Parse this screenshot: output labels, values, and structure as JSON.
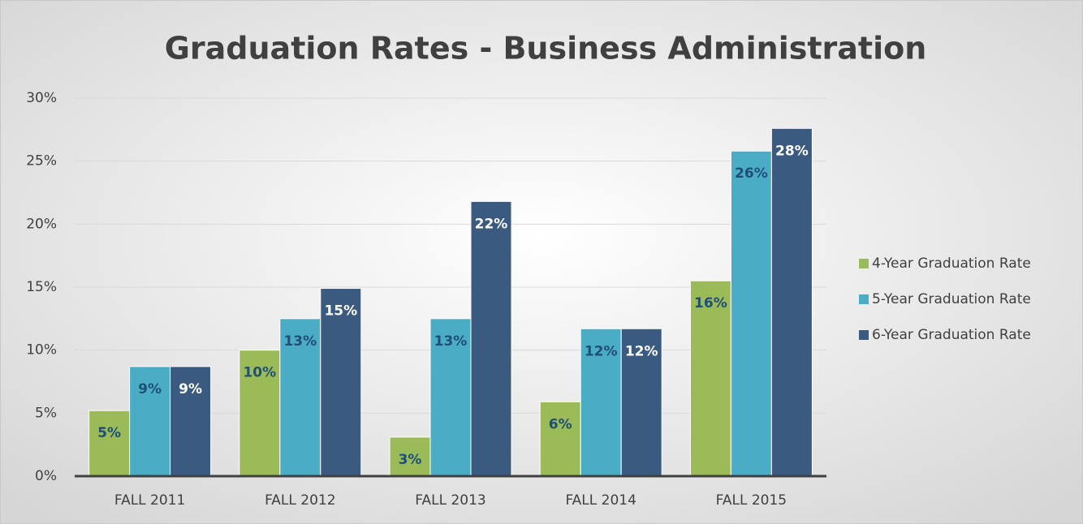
{
  "chart_data": {
    "type": "bar",
    "title": "Graduation Rates - Business Administration",
    "categories": [
      "FALL 2011",
      "FALL 2012",
      "FALL 2013",
      "FALL 2014",
      "FALL 2015"
    ],
    "series": [
      {
        "name": "4-Year Graduation Rate",
        "color": "#9bbb59",
        "label_color": "#1f4e79",
        "values": [
          5.2,
          10.0,
          3.1,
          5.9,
          15.5
        ],
        "value_labels": [
          "5%",
          "10%",
          "3%",
          "6%",
          "16%"
        ]
      },
      {
        "name": "5-Year Graduation Rate",
        "color": "#4bacc6",
        "label_color": "#1f4e79",
        "values": [
          8.7,
          12.5,
          12.5,
          11.7,
          25.8
        ],
        "value_labels": [
          "9%",
          "13%",
          "13%",
          "12%",
          "26%"
        ]
      },
      {
        "name": "6-Year Graduation Rate",
        "color": "#3a5a80",
        "label_color": "#ffffff",
        "values": [
          8.7,
          14.9,
          21.8,
          11.7,
          27.6
        ],
        "value_labels": [
          "9%",
          "15%",
          "22%",
          "12%",
          "28%"
        ]
      }
    ],
    "ylim": [
      0,
      30
    ],
    "yticks": [
      {
        "value": 0,
        "label": "0%"
      },
      {
        "value": 5,
        "label": "5%"
      },
      {
        "value": 10,
        "label": "10%"
      },
      {
        "value": 15,
        "label": "15%"
      },
      {
        "value": 20,
        "label": "20%"
      },
      {
        "value": 25,
        "label": "25%"
      },
      {
        "value": 30,
        "label": "30%"
      }
    ],
    "grid": true,
    "legend": "right"
  }
}
